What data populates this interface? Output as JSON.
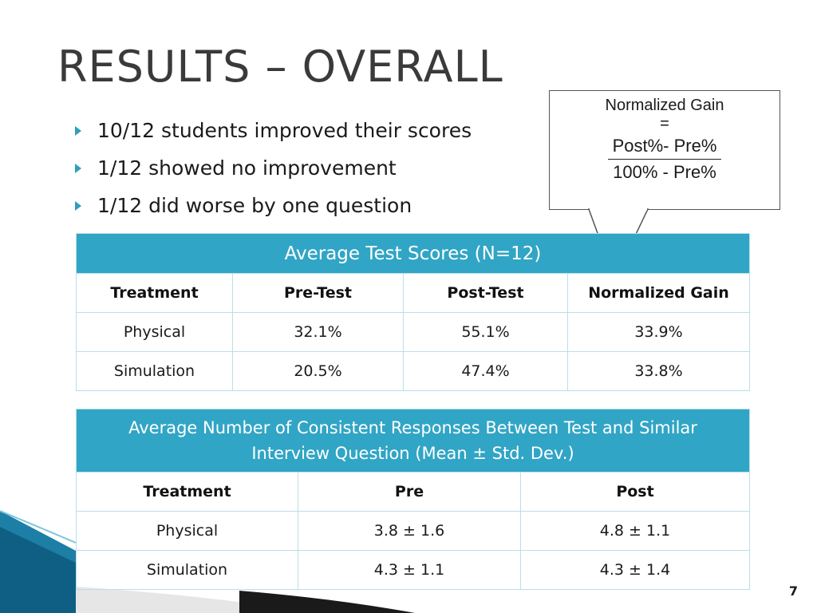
{
  "title": "RESULTS – OVERALL",
  "bullets": [
    "10/12 students improved their scores",
    " 1/12 showed no improvement",
    " 1/12 did worse by one question"
  ],
  "callout": {
    "line1": "Normalized Gain",
    "line2": "=",
    "numerator": "Post%- Pre%",
    "denominator": "100% - Pre%"
  },
  "table1": {
    "title": "Average  Test  Scores  (N=12)",
    "headers": [
      "Treatment",
      "Pre-Test",
      "Post-Test",
      "Normalized Gain"
    ],
    "rows": [
      [
        "Physical",
        "32.1%",
        "55.1%",
        "33.9%"
      ],
      [
        "Simulation",
        "20.5%",
        "47.4%",
        "33.8%"
      ]
    ]
  },
  "table2": {
    "title_line1": "Average  Number of Consistent Responses Between Test and Similar",
    "title_line2": "Interview Question (Mean ± Std. Dev.)",
    "headers": [
      "Treatment",
      "Pre",
      "Post"
    ],
    "rows": [
      [
        "Physical",
        "3.8 ± 1.6",
        "4.8 ± 1.1"
      ],
      [
        "Simulation",
        "4.3 ± 1.1",
        "4.3 ± 1.4"
      ]
    ]
  },
  "page_number": "7",
  "colors": {
    "accent": "#31a5c5",
    "border": "#b9dfe9",
    "bullet": "#2e9fbd"
  }
}
